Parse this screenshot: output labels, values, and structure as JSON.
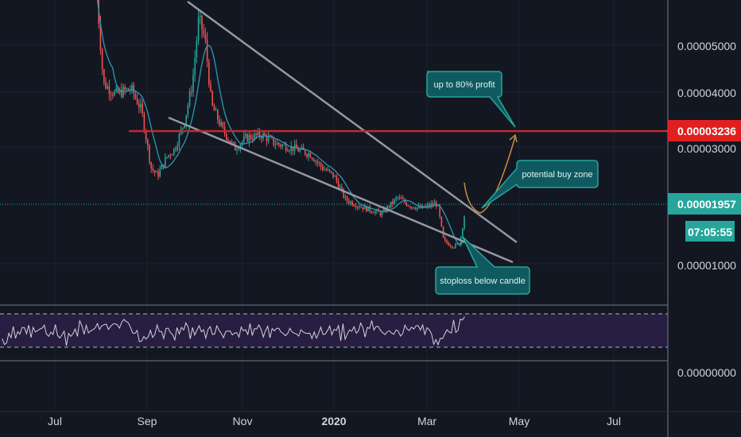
{
  "chart_data": {
    "type": "candlestick",
    "x_axis": {
      "ticks": [
        "Jul",
        "Sep",
        "Nov",
        "2020",
        "Mar",
        "May",
        "Jul"
      ]
    },
    "y_axis": {
      "ticks": [
        "0.00005000",
        "0.00004000",
        "0.00003000",
        "0.00001000"
      ],
      "range": [
        3.8e-06,
        5.93e-05
      ]
    },
    "price_tags": [
      {
        "id": "resistance",
        "label": "0.00003236",
        "value": 3.236e-05,
        "color": "#e02020"
      },
      {
        "id": "current",
        "label": "0.00001957",
        "value": 1.957e-05,
        "color": "#26a69a"
      }
    ],
    "countdown": "07:05:55",
    "annotations": [
      {
        "text": "up to 80% profit"
      },
      {
        "text": "potential buy zone"
      },
      {
        "text": "stoploss below candle"
      }
    ],
    "rsi_panel": {
      "levels": [
        70,
        30
      ],
      "scale_tick": "0.00000000"
    },
    "colors": {
      "up": "#26a69a",
      "down": "#ef5350",
      "ma": "#2a9ab6",
      "trend": "#9598a1",
      "resistance": "#c62828",
      "callout": "#0f5a60",
      "callout_border": "#26a69a",
      "projection": "#f0a23c"
    }
  }
}
